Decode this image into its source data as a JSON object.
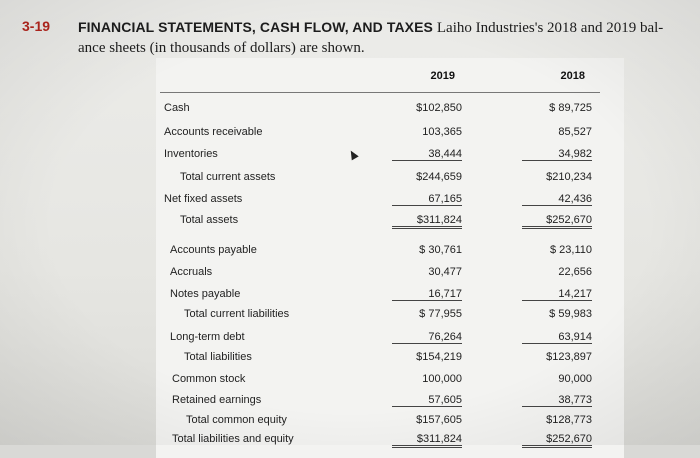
{
  "problem": {
    "number": "3-19",
    "title_caps": "FINANCIAL STATEMENTS, CASH FLOW, AND TAXES",
    "text": "Laiho Industries's 2018 and 2019 balance sheets (in thousands of dollars) are shown.",
    "text_line1": "Laiho Industries's 2018 and 2019 bal-",
    "text_line2": "ance sheets (in thousands of dollars) are shown."
  },
  "table": {
    "columns": [
      "2019",
      "2018"
    ],
    "rows": [
      {
        "label": "Cash",
        "v2019": "$102,850",
        "v2018": "$ 89,725"
      },
      {
        "label": "Accounts receivable",
        "v2019": "103,365",
        "v2018": "85,527"
      },
      {
        "label": "Inventories",
        "v2019": "38,444",
        "v2018": "34,982"
      },
      {
        "label": "Total current assets",
        "v2019": "$244,659",
        "v2018": "$210,234"
      },
      {
        "label": "Net fixed assets",
        "v2019": "67,165",
        "v2018": "42,436"
      },
      {
        "label": "Total assets",
        "v2019": "$311,824",
        "v2018": "$252,670"
      },
      {
        "label": "Accounts payable",
        "v2019": "$ 30,761",
        "v2018": "$ 23,110"
      },
      {
        "label": "Accruals",
        "v2019": "30,477",
        "v2018": "22,656"
      },
      {
        "label": "Notes payable",
        "v2019": "16,717",
        "v2018": "14,217"
      },
      {
        "label": "Total current liabilities",
        "v2019": "$ 77,955",
        "v2018": "$ 59,983"
      },
      {
        "label": "Long-term debt",
        "v2019": "76,264",
        "v2018": "63,914"
      },
      {
        "label": "Total liabilities",
        "v2019": "$154,219",
        "v2018": "$123,897"
      },
      {
        "label": "Common stock",
        "v2019": "100,000",
        "v2018": "90,000"
      },
      {
        "label": "Retained earnings",
        "v2019": "57,605",
        "v2018": "38,773"
      },
      {
        "label": "Total common equity",
        "v2019": "$157,605",
        "v2018": "$128,773"
      },
      {
        "label": "Total liabilities and equity",
        "v2019": "$311,824",
        "v2018": "$252,670"
      }
    ]
  }
}
